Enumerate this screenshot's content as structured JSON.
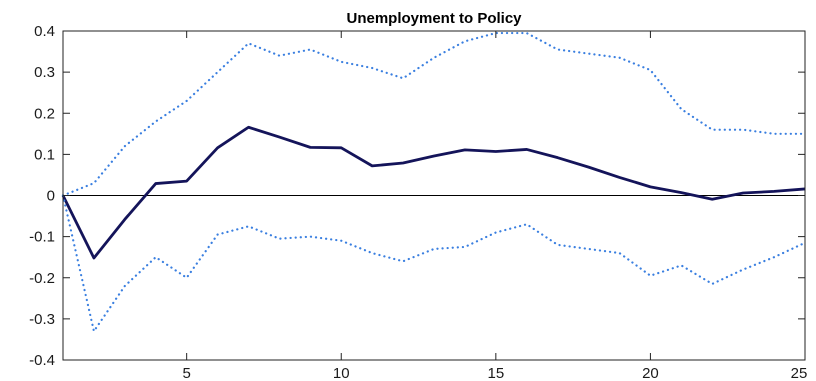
{
  "chart_data": {
    "type": "line",
    "title": "Unemployment to Policy",
    "xlabel": "",
    "ylabel": "",
    "xlim": [
      1,
      25
    ],
    "ylim": [
      -0.4,
      0.4
    ],
    "x_ticks": [
      5,
      10,
      15,
      20,
      25
    ],
    "y_ticks": [
      0.4,
      0.3,
      0.2,
      0.1,
      0,
      -0.1,
      -0.2,
      -0.3,
      -0.4
    ],
    "grid": false,
    "zero_line": true,
    "series": [
      {
        "style": "solid",
        "color": "#14145a",
        "x": [
          1,
          2,
          3,
          4,
          5,
          6,
          7,
          8,
          9,
          10,
          11,
          12,
          13,
          14,
          15,
          16,
          17,
          18,
          19,
          20,
          21,
          22,
          23,
          24,
          25
        ],
        "values": [
          0,
          -0.152,
          -0.058,
          0.029,
          0.035,
          0.116,
          0.166,
          0.142,
          0.117,
          0.116,
          0.072,
          0.079,
          0.096,
          0.111,
          0.107,
          0.112,
          0.092,
          0.069,
          0.044,
          0.021,
          0.007,
          -0.009,
          0.006,
          0.01,
          0.016
        ]
      },
      {
        "style": "dotted",
        "color": "#3a7fe0",
        "x": [
          1,
          2,
          3,
          4,
          5,
          6,
          7,
          8,
          9,
          10,
          11,
          12,
          13,
          14,
          15,
          16,
          17,
          18,
          19,
          20,
          21,
          22,
          23,
          24,
          25
        ],
        "values": [
          0,
          0.03,
          0.12,
          0.18,
          0.23,
          0.3,
          0.37,
          0.34,
          0.355,
          0.325,
          0.31,
          0.285,
          0.335,
          0.375,
          0.395,
          0.395,
          0.355,
          0.345,
          0.335,
          0.305,
          0.21,
          0.16,
          0.16,
          0.15,
          0.15
        ]
      },
      {
        "style": "dotted",
        "color": "#3a7fe0",
        "x": [
          1,
          2,
          3,
          4,
          5,
          6,
          7,
          8,
          9,
          10,
          11,
          12,
          13,
          14,
          15,
          16,
          17,
          18,
          19,
          20,
          21,
          22,
          23,
          24,
          25
        ],
        "values": [
          0,
          -0.33,
          -0.22,
          -0.15,
          -0.2,
          -0.095,
          -0.075,
          -0.105,
          -0.1,
          -0.11,
          -0.14,
          -0.16,
          -0.13,
          -0.125,
          -0.09,
          -0.07,
          -0.12,
          -0.13,
          -0.14,
          -0.195,
          -0.17,
          -0.215,
          -0.18,
          -0.15,
          -0.115
        ]
      }
    ]
  }
}
